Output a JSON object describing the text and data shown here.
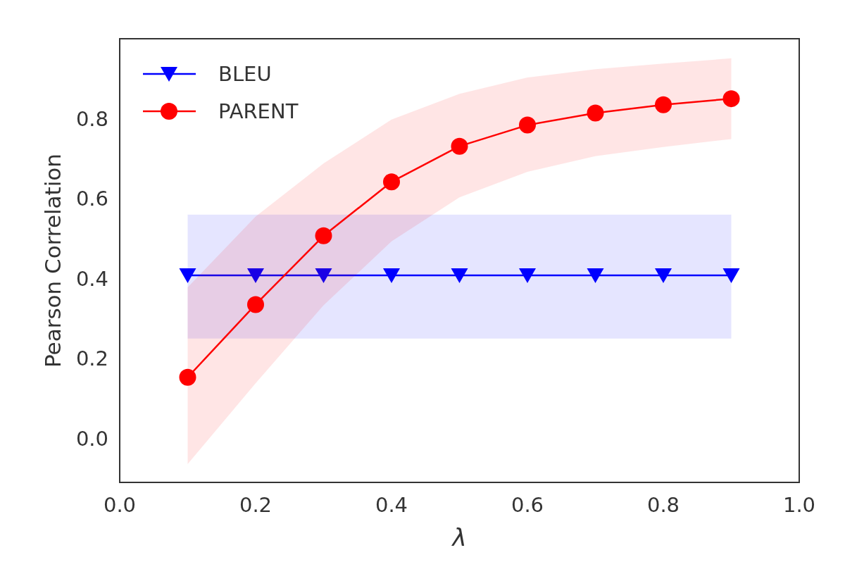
{
  "chart_data": {
    "type": "line",
    "xlabel": "λ",
    "ylabel": "Pearson Correlation",
    "xlim": [
      0,
      1
    ],
    "ylim": [
      -0.11,
      1.0
    ],
    "xticks": [
      {
        "value": 0,
        "label": "0.0"
      },
      {
        "value": 0.2,
        "label": "0.2"
      },
      {
        "value": 0.4,
        "label": "0.4"
      },
      {
        "value": 0.6,
        "label": "0.6"
      },
      {
        "value": 0.8,
        "label": "0.8"
      },
      {
        "value": 1,
        "label": "1.0"
      }
    ],
    "yticks": [
      {
        "value": 0,
        "label": "0.0"
      },
      {
        "value": 0.2,
        "label": "0.2"
      },
      {
        "value": 0.4,
        "label": "0.4"
      },
      {
        "value": 0.6,
        "label": "0.6"
      },
      {
        "value": 0.8,
        "label": "0.8"
      }
    ],
    "x": [
      0.1,
      0.2,
      0.3,
      0.4,
      0.5,
      0.6,
      0.7,
      0.8,
      0.9
    ],
    "grid": false,
    "legend": "top left",
    "line_style": "solid",
    "series": [
      {
        "name": "BLEU",
        "color": "#0000ff",
        "marker": "triangle",
        "values": [
          0.408,
          0.408,
          0.408,
          0.408,
          0.408,
          0.408,
          0.408,
          0.408,
          0.408
        ],
        "lower": [
          0.25,
          0.25,
          0.25,
          0.25,
          0.25,
          0.25,
          0.25,
          0.25,
          0.25
        ],
        "upper": [
          0.56,
          0.56,
          0.56,
          0.56,
          0.56,
          0.56,
          0.56,
          0.56,
          0.56
        ]
      },
      {
        "name": "PARENT",
        "color": "#ff0000",
        "marker": "circle",
        "values": [
          0.153,
          0.335,
          0.507,
          0.642,
          0.731,
          0.784,
          0.814,
          0.835,
          0.85
        ],
        "lower": [
          -0.064,
          0.138,
          0.333,
          0.493,
          0.603,
          0.667,
          0.706,
          0.729,
          0.749
        ],
        "upper": [
          0.378,
          0.555,
          0.688,
          0.798,
          0.862,
          0.903,
          0.924,
          0.938,
          0.951
        ]
      }
    ]
  }
}
